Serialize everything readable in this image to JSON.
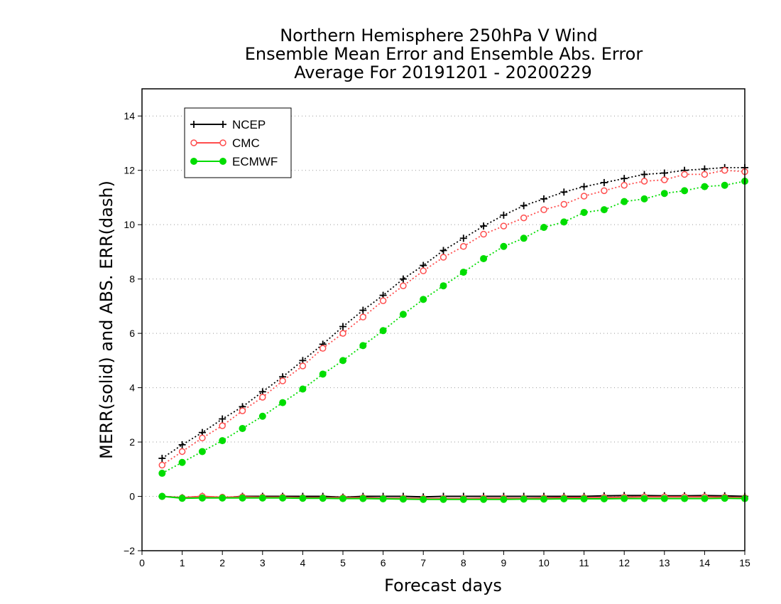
{
  "chart_data": {
    "type": "line",
    "title_lines": [
      "Northern Hemisphere 250hPa V Wind",
      "Ensemble Mean Error and Ensemble Abs. Error",
      "Average For 20191201 - 20200229"
    ],
    "xlabel": "Forecast days",
    "ylabel": "MERR(solid) and ABS. ERR(dash)",
    "xlim": [
      0,
      15
    ],
    "ylim": [
      -2,
      15
    ],
    "xticks": [
      "0",
      "1",
      "2",
      "3",
      "4",
      "5",
      "6",
      "7",
      "8",
      "9",
      "10",
      "11",
      "12",
      "13",
      "14",
      "15"
    ],
    "yticks": [
      "-2",
      "0",
      "2",
      "4",
      "6",
      "8",
      "10",
      "12",
      "14"
    ],
    "grid": "horizontal dotted",
    "legend_position": "top-left",
    "x": [
      0.5,
      1,
      1.5,
      2,
      2.5,
      3,
      3.5,
      4,
      4.5,
      5,
      5.5,
      6,
      6.5,
      7,
      7.5,
      8,
      8.5,
      9,
      9.5,
      10,
      10.5,
      11,
      11.5,
      12,
      12.5,
      13,
      13.5,
      14,
      14.5,
      15
    ],
    "series": [
      {
        "name": "NCEP",
        "color": "#000000",
        "marker": "plus",
        "abs_error": [
          1.4,
          1.9,
          2.35,
          2.85,
          3.3,
          3.85,
          4.4,
          5.0,
          5.6,
          6.25,
          6.85,
          7.4,
          8.0,
          8.5,
          9.05,
          9.5,
          9.95,
          10.35,
          10.7,
          10.95,
          11.2,
          11.4,
          11.55,
          11.7,
          11.85,
          11.9,
          12.0,
          12.05,
          12.1,
          12.1
        ],
        "mean_error": [
          0.0,
          -0.05,
          0.0,
          -0.05,
          0.0,
          0.0,
          0.0,
          0.0,
          0.0,
          -0.03,
          0.0,
          0.0,
          0.0,
          -0.02,
          0.0,
          0.0,
          0.0,
          0.0,
          0.0,
          0.0,
          0.0,
          0.0,
          0.02,
          0.03,
          0.03,
          0.02,
          0.02,
          0.03,
          0.02,
          0.0
        ]
      },
      {
        "name": "CMC",
        "color": "#ff4d4d",
        "marker": "open-circle",
        "abs_error": [
          1.15,
          1.65,
          2.15,
          2.6,
          3.15,
          3.65,
          4.25,
          4.8,
          5.45,
          6.0,
          6.6,
          7.2,
          7.75,
          8.3,
          8.8,
          9.2,
          9.65,
          9.95,
          10.25,
          10.55,
          10.75,
          11.05,
          11.25,
          11.45,
          11.6,
          11.65,
          11.85,
          11.85,
          12.0,
          11.95
        ],
        "mean_error": [
          0.0,
          -0.05,
          0.0,
          -0.03,
          -0.02,
          -0.03,
          -0.03,
          -0.05,
          -0.05,
          -0.05,
          -0.05,
          -0.07,
          -0.07,
          -0.08,
          -0.08,
          -0.08,
          -0.07,
          -0.07,
          -0.07,
          -0.06,
          -0.05,
          -0.05,
          -0.04,
          -0.03,
          -0.02,
          -0.02,
          -0.02,
          -0.02,
          -0.03,
          -0.05
        ]
      },
      {
        "name": "ECMWF",
        "color": "#00dd00",
        "marker": "filled-circle",
        "abs_error": [
          0.85,
          1.25,
          1.65,
          2.05,
          2.5,
          2.95,
          3.45,
          3.95,
          4.5,
          5.0,
          5.55,
          6.1,
          6.7,
          7.25,
          7.75,
          8.25,
          8.75,
          9.2,
          9.5,
          9.9,
          10.1,
          10.45,
          10.55,
          10.85,
          10.95,
          11.15,
          11.25,
          11.4,
          11.45,
          11.6
        ],
        "mean_error": [
          0.0,
          -0.07,
          -0.06,
          -0.06,
          -0.06,
          -0.06,
          -0.06,
          -0.07,
          -0.07,
          -0.08,
          -0.08,
          -0.09,
          -0.1,
          -0.11,
          -0.11,
          -0.11,
          -0.11,
          -0.11,
          -0.1,
          -0.1,
          -0.09,
          -0.09,
          -0.09,
          -0.08,
          -0.08,
          -0.08,
          -0.08,
          -0.08,
          -0.07,
          -0.08
        ]
      }
    ]
  }
}
